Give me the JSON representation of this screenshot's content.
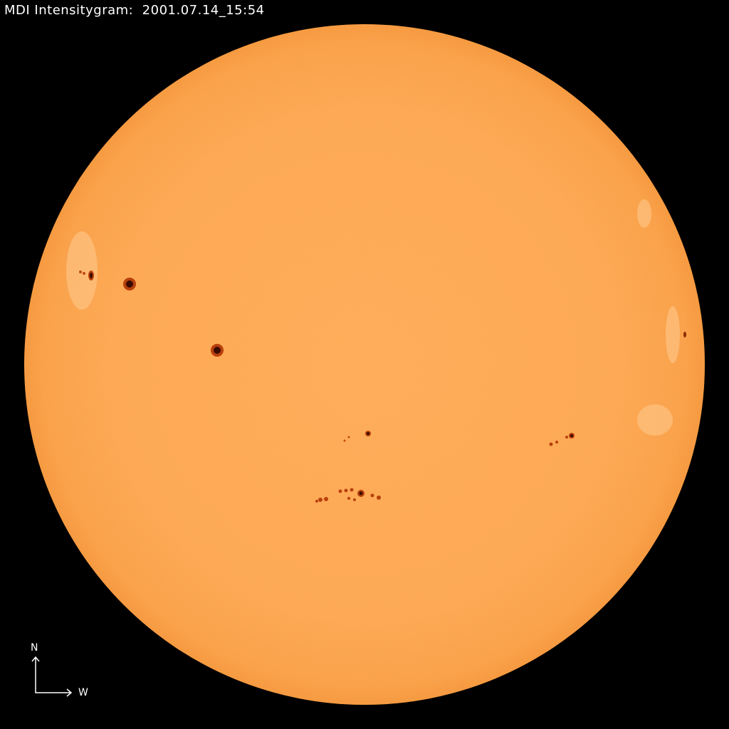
{
  "title": "MDI Intensitygram:  2001.07.14_15:54",
  "compass": {
    "north_label": "N",
    "west_label": "W"
  },
  "colors": {
    "background": "#000000",
    "disk_center": "#FFAA55",
    "disk_limb": "#F5963A",
    "sunspot_umbra": "#3A0A00",
    "sunspot_penumbra": "#B8400C",
    "text": "#FFFFFF"
  }
}
